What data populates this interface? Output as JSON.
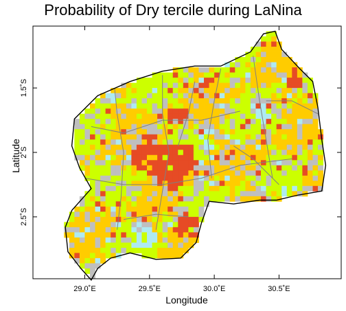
{
  "chart_data": {
    "type": "heatmap",
    "title": "Probability of Dry tercile during LaNina",
    "xlabel": "Longitude",
    "ylabel": "Latitude",
    "xlim": [
      28.6,
      30.98
    ],
    "ylim": [
      -2.98,
      -1.02
    ],
    "x_ticks": [
      {
        "value": 29.0,
        "label": "29.0˚E"
      },
      {
        "value": 29.5,
        "label": "29.5˚E"
      },
      {
        "value": 30.0,
        "label": "30.0˚E"
      },
      {
        "value": 30.5,
        "label": "30.5˚E"
      }
    ],
    "y_ticks": [
      {
        "value": -1.5,
        "label": "1.5˚S"
      },
      {
        "value": -2.0,
        "label": "2˚S"
      },
      {
        "value": -2.5,
        "label": "2.5˚S"
      }
    ],
    "grid": false,
    "legend": "none",
    "cell_size_deg": 0.04,
    "category_colors": {
      "0": "#bfbfbf",
      "1": "#ccff00",
      "2": "#ffcc00",
      "3": "#e64b25",
      "4": "#aeeaf2"
    },
    "boundary_color": "#000000",
    "district_color": "#808080",
    "outline": [
      [
        29.05,
        -2.99
      ],
      [
        28.97,
        -2.9
      ],
      [
        28.87,
        -2.77
      ],
      [
        28.85,
        -2.58
      ],
      [
        28.9,
        -2.45
      ],
      [
        29.05,
        -2.28
      ],
      [
        28.96,
        -2.12
      ],
      [
        28.9,
        -1.95
      ],
      [
        28.92,
        -1.74
      ],
      [
        29.1,
        -1.56
      ],
      [
        29.35,
        -1.45
      ],
      [
        29.6,
        -1.37
      ],
      [
        29.85,
        -1.33
      ],
      [
        30.05,
        -1.33
      ],
      [
        30.28,
        -1.22
      ],
      [
        30.38,
        -1.08
      ],
      [
        30.47,
        -1.06
      ],
      [
        30.52,
        -1.2
      ],
      [
        30.66,
        -1.35
      ],
      [
        30.76,
        -1.45
      ],
      [
        30.8,
        -1.65
      ],
      [
        30.83,
        -1.9
      ],
      [
        30.86,
        -2.1
      ],
      [
        30.83,
        -2.3
      ],
      [
        30.65,
        -2.33
      ],
      [
        30.48,
        -2.37
      ],
      [
        30.35,
        -2.37
      ],
      [
        30.15,
        -2.4
      ],
      [
        29.96,
        -2.38
      ],
      [
        29.9,
        -2.55
      ],
      [
        29.86,
        -2.7
      ],
      [
        29.74,
        -2.82
      ],
      [
        29.55,
        -2.83
      ],
      [
        29.35,
        -2.78
      ],
      [
        29.2,
        -2.82
      ],
      [
        29.1,
        -2.9
      ]
    ],
    "districts": [
      [
        [
          29.23,
          -1.5
        ],
        [
          29.25,
          -1.7
        ],
        [
          29.3,
          -2.0
        ],
        [
          29.28,
          -2.35
        ],
        [
          29.25,
          -2.6
        ]
      ],
      [
        [
          29.6,
          -1.4
        ],
        [
          29.6,
          -1.7
        ],
        [
          29.65,
          -2.0
        ],
        [
          29.6,
          -2.3
        ],
        [
          29.55,
          -2.6
        ]
      ],
      [
        [
          29.05,
          -1.8
        ],
        [
          29.3,
          -1.85
        ],
        [
          29.6,
          -1.75
        ],
        [
          29.9,
          -1.75
        ],
        [
          30.2,
          -1.68
        ]
      ],
      [
        [
          29.0,
          -2.2
        ],
        [
          29.3,
          -2.25
        ],
        [
          29.6,
          -2.25
        ],
        [
          29.9,
          -2.2
        ],
        [
          30.2,
          -2.1
        ],
        [
          30.6,
          -2.05
        ]
      ],
      [
        [
          30.05,
          -1.35
        ],
        [
          30.0,
          -1.6
        ],
        [
          29.95,
          -1.9
        ],
        [
          29.98,
          -2.2
        ]
      ],
      [
        [
          30.3,
          -1.25
        ],
        [
          30.35,
          -1.6
        ],
        [
          30.4,
          -1.9
        ],
        [
          30.45,
          -2.2
        ]
      ],
      [
        [
          29.3,
          -2.52
        ],
        [
          29.55,
          -2.48
        ],
        [
          29.8,
          -2.5
        ]
      ],
      [
        [
          30.4,
          -1.6
        ],
        [
          30.6,
          -1.6
        ],
        [
          30.8,
          -1.7
        ]
      ],
      [
        [
          29.85,
          -1.45
        ],
        [
          29.8,
          -1.7
        ],
        [
          29.72,
          -1.95
        ]
      ],
      [
        [
          30.15,
          -1.95
        ],
        [
          30.3,
          -2.05
        ],
        [
          30.5,
          -2.25
        ]
      ]
    ],
    "hotspots": [
      {
        "lon": 29.5,
        "lat": -2.03,
        "r": 0.15,
        "category": "3"
      },
      {
        "lon": 29.75,
        "lat": -2.05,
        "r": 0.12,
        "category": "3"
      },
      {
        "lon": 29.7,
        "lat": -1.72,
        "r": 0.07,
        "category": "3"
      },
      {
        "lon": 29.65,
        "lat": -2.2,
        "r": 0.1,
        "category": "3"
      },
      {
        "lon": 29.78,
        "lat": -2.58,
        "r": 0.1,
        "category": "3"
      },
      {
        "lon": 29.9,
        "lat": -1.5,
        "r": 0.07,
        "category": "3"
      },
      {
        "lon": 30.62,
        "lat": -1.45,
        "r": 0.06,
        "category": "3"
      },
      {
        "lon": 29.45,
        "lat": -2.65,
        "r": 0.1,
        "category": "4"
      },
      {
        "lon": 29.95,
        "lat": -1.9,
        "r": 0.07,
        "category": "4"
      },
      {
        "lon": 30.38,
        "lat": -1.7,
        "r": 0.07,
        "category": "4"
      }
    ]
  }
}
